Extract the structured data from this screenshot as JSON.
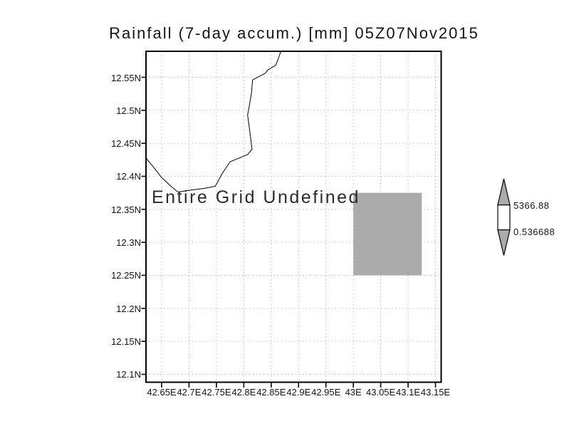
{
  "chart_data": {
    "type": "heatmap",
    "title": "Rainfall (7-day accum.) [mm] 05Z07Nov2015",
    "annotation": "Entire Grid Undefined",
    "grid": "dotted",
    "x_axis": {
      "ticks": [
        {
          "v": 42.65,
          "label": "42.65E"
        },
        {
          "v": 42.7,
          "label": "42.7E"
        },
        {
          "v": 42.75,
          "label": "42.75E"
        },
        {
          "v": 42.8,
          "label": "42.8E"
        },
        {
          "v": 42.85,
          "label": "42.85E"
        },
        {
          "v": 42.9,
          "label": "42.9E"
        },
        {
          "v": 42.95,
          "label": "42.95E"
        },
        {
          "v": 43.0,
          "label": "43E"
        },
        {
          "v": 43.05,
          "label": "43.05E"
        },
        {
          "v": 43.1,
          "label": "43.1E"
        },
        {
          "v": 43.15,
          "label": "43.15E"
        }
      ],
      "range": [
        42.62,
        43.16
      ]
    },
    "y_axis": {
      "ticks": [
        {
          "v": 12.55,
          "label": "12.55N"
        },
        {
          "v": 12.5,
          "label": "12.5N"
        },
        {
          "v": 12.45,
          "label": "12.45N"
        },
        {
          "v": 12.4,
          "label": "12.4N"
        },
        {
          "v": 12.35,
          "label": "12.35N"
        },
        {
          "v": 12.3,
          "label": "12.3N"
        },
        {
          "v": 12.25,
          "label": "12.25N"
        },
        {
          "v": 12.2,
          "label": "12.2N"
        },
        {
          "v": 12.15,
          "label": "12.15N"
        },
        {
          "v": 12.1,
          "label": "12.1N"
        }
      ],
      "range": [
        12.09,
        12.59
      ]
    },
    "colorbar": {
      "max_label": "5366.88",
      "min_label": "0.536688",
      "max_value": 5366.88,
      "min_value": 0.536688,
      "segment_colors": [
        "#ababab",
        "#ffffff",
        "#ababab"
      ]
    },
    "undefined_region": {
      "lon_min": 43.0,
      "lon_max": 43.125,
      "lat_min": 12.25,
      "lat_max": 12.375,
      "color": "#ababab"
    },
    "coastline": [
      [
        42.868,
        12.59
      ],
      [
        42.862,
        12.576
      ],
      [
        42.858,
        12.568
      ],
      [
        42.845,
        12.562
      ],
      [
        42.839,
        12.556
      ],
      [
        42.816,
        12.546
      ],
      [
        42.814,
        12.526
      ],
      [
        42.81,
        12.506
      ],
      [
        42.807,
        12.493
      ],
      [
        42.811,
        12.468
      ],
      [
        42.815,
        12.441
      ],
      [
        42.807,
        12.433
      ],
      [
        42.775,
        12.422
      ],
      [
        42.761,
        12.405
      ],
      [
        42.748,
        12.385
      ],
      [
        42.729,
        12.382
      ],
      [
        42.693,
        12.378
      ],
      [
        42.68,
        12.376
      ],
      [
        42.667,
        12.385
      ],
      [
        42.65,
        12.398
      ],
      [
        42.634,
        12.415
      ],
      [
        42.621,
        12.428
      ]
    ]
  },
  "colors": {
    "grid": "#c2c2c2",
    "frame": "#000000",
    "coastline": "#000000",
    "text": "#141414"
  }
}
